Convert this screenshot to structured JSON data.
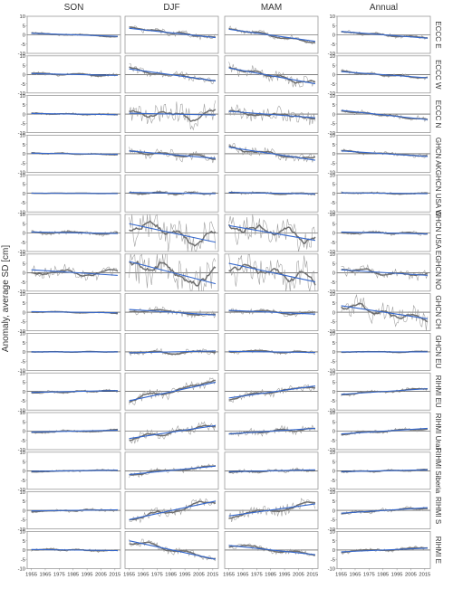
{
  "ylabel": "Anomaly, average SD [cm]",
  "columns": [
    "SON",
    "DJF",
    "MAM",
    "Annual"
  ],
  "rows": [
    "ECCC E",
    "ECCC W",
    "ECCC N",
    "GHCN AK",
    "GHCN USA W",
    "GHCN USA E",
    "GHCN NO",
    "GHCN CH",
    "GHCN EU",
    "RIHMI EU",
    "RIHMI Ural",
    "RIHMI Siberia",
    "RIHMI S",
    "RIHMI E"
  ],
  "y_ticks": [
    "10",
    "5",
    "0",
    "-5",
    "-10"
  ],
  "x_ticks": [
    "1955",
    "1965",
    "1975",
    "1985",
    "1995",
    "2005",
    "2015"
  ],
  "colors": {
    "raw": "#9a9a9a",
    "smooth": "#6e6e6e",
    "trend": "#3366cc",
    "frame": "#8c8c8c",
    "zero": "#333333"
  },
  "chart_data": {
    "type": "line",
    "xlim": [
      1952,
      2019
    ],
    "ylim": [
      -10,
      10
    ],
    "x_start": 1955,
    "x_end": 2017,
    "grid": false,
    "trend_start_end": [
      [
        [
          0.8,
          -0.8
        ],
        [
          3.5,
          -1.5
        ],
        [
          3.0,
          -3.5
        ],
        [
          1.8,
          -1.8
        ]
      ],
      [
        [
          0.5,
          -0.5
        ],
        [
          3.0,
          -3.5
        ],
        [
          3.5,
          -5.0
        ],
        [
          1.5,
          -1.8
        ]
      ],
      [
        [
          0.3,
          -0.3
        ],
        [
          0.5,
          -0.5
        ],
        [
          1.5,
          -2.0
        ],
        [
          2.0,
          -3.0
        ]
      ],
      [
        [
          0.3,
          -0.3
        ],
        [
          1.5,
          -2.5
        ],
        [
          3.5,
          -3.5
        ],
        [
          1.5,
          -1.5
        ]
      ],
      [
        [
          0.1,
          -0.1
        ],
        [
          0.5,
          -0.2
        ],
        [
          0.5,
          -0.3
        ],
        [
          0.3,
          -0.2
        ]
      ],
      [
        [
          0.5,
          -0.3
        ],
        [
          5.0,
          -5.0
        ],
        [
          4.0,
          -4.0
        ],
        [
          0.5,
          -0.5
        ]
      ],
      [
        [
          1.5,
          -1.5
        ],
        [
          6.0,
          -6.0
        ],
        [
          5.0,
          -5.0
        ],
        [
          1.5,
          -1.5
        ]
      ],
      [
        [
          0.3,
          -0.3
        ],
        [
          1.5,
          -1.5
        ],
        [
          1.0,
          -1.0
        ],
        [
          3.5,
          -3.5
        ]
      ],
      [
        [
          0.0,
          0.0
        ],
        [
          -0.5,
          0.5
        ],
        [
          0.3,
          -0.3
        ],
        [
          0.0,
          0.0
        ]
      ],
      [
        [
          -0.5,
          0.5
        ],
        [
          -5.0,
          5.0
        ],
        [
          -3.5,
          3.0
        ],
        [
          -1.5,
          1.5
        ]
      ],
      [
        [
          -0.5,
          0.5
        ],
        [
          -4.0,
          3.0
        ],
        [
          -1.5,
          1.5
        ],
        [
          -1.5,
          1.5
        ]
      ],
      [
        [
          -0.3,
          0.3
        ],
        [
          -2.0,
          2.5
        ],
        [
          -0.5,
          0.5
        ],
        [
          -0.5,
          0.5
        ]
      ],
      [
        [
          -0.3,
          0.3
        ],
        [
          -5.0,
          5.0
        ],
        [
          -3.0,
          3.5
        ],
        [
          -1.5,
          1.5
        ]
      ],
      [
        [
          0.3,
          -0.3
        ],
        [
          5.0,
          -5.0
        ],
        [
          2.5,
          -2.5
        ],
        [
          -1.0,
          1.0
        ]
      ]
    ],
    "variability": [
      [
        0.6,
        1.5,
        1.5,
        1.0
      ],
      [
        1.0,
        2.0,
        3.0,
        1.0
      ],
      [
        0.6,
        6.0,
        4.0,
        1.2
      ],
      [
        0.5,
        2.5,
        2.5,
        1.0
      ],
      [
        0.2,
        1.0,
        0.8,
        0.6
      ],
      [
        1.2,
        9.0,
        7.0,
        1.0
      ],
      [
        3.0,
        10.0,
        9.0,
        2.5
      ],
      [
        0.5,
        2.0,
        1.5,
        6.0
      ],
      [
        0.3,
        1.5,
        1.0,
        0.5
      ],
      [
        0.8,
        3.0,
        2.0,
        1.0
      ],
      [
        0.8,
        2.5,
        2.0,
        1.0
      ],
      [
        0.6,
        1.5,
        1.0,
        0.6
      ],
      [
        0.8,
        2.5,
        3.0,
        1.0
      ],
      [
        0.8,
        2.0,
        1.5,
        1.0
      ]
    ]
  }
}
